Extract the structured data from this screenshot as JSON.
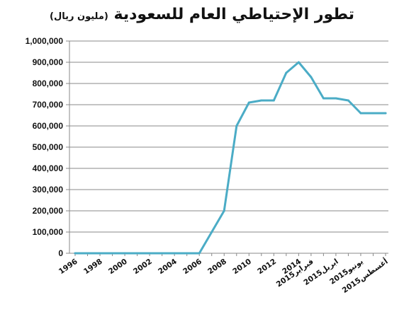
{
  "chart_data": {
    "type": "line",
    "title": "تطور الإحتياطي العام للسعودية",
    "subtitle": "(مليون ريال)",
    "xlabel": "",
    "ylabel": "",
    "x": [
      "1996",
      "1997",
      "1998",
      "1999",
      "2000",
      "2001",
      "2002",
      "2003",
      "2004",
      "2005",
      "2006",
      "2007",
      "2008",
      "2009",
      "2010",
      "2011",
      "2012",
      "2013",
      "2014",
      "2015فبراير",
      "2015مارس",
      "2015ابريل",
      "2015مايو",
      "2015يونيو",
      "2015يوليو",
      "2015أغسطس"
    ],
    "x_tick_labels": [
      "1996",
      "",
      "1998",
      "",
      "2000",
      "",
      "2002",
      "",
      "2004",
      "",
      "2006",
      "",
      "2008",
      "",
      "2010",
      "",
      "2012",
      "",
      "2014",
      "2015فبراير",
      "",
      "2015ابريل",
      "",
      "2015يونيو",
      "",
      "2015أغسطس"
    ],
    "series": [
      {
        "values": [
          0,
          0,
          0,
          0,
          0,
          0,
          0,
          0,
          0,
          0,
          0,
          100000,
          200000,
          600000,
          710000,
          720000,
          720000,
          850000,
          900000,
          830000,
          730000,
          730000,
          720000,
          660000,
          660000,
          660000
        ]
      }
    ],
    "ylim": [
      0,
      1000000
    ],
    "yticks": [
      0,
      100000,
      200000,
      300000,
      400000,
      500000,
      600000,
      700000,
      800000,
      900000,
      1000000
    ],
    "ytick_labels": [
      "0",
      "100,000",
      "200,000",
      "300,000",
      "400,000",
      "500,000",
      "600,000",
      "700,000",
      "800,000",
      "900,000",
      "1,000,000"
    ],
    "grid": "horizontal",
    "line_color": "#4bacc6",
    "grid_color": "#898989"
  }
}
